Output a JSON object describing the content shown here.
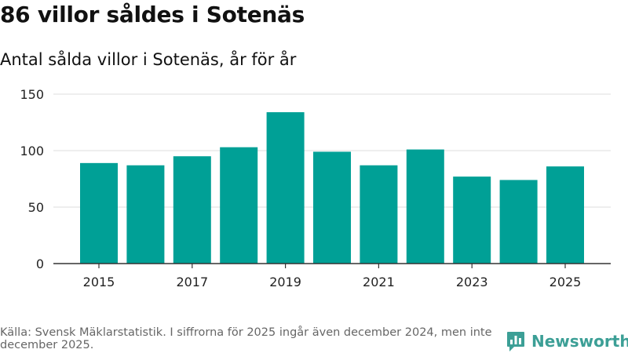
{
  "header": {
    "title": "86 villor såldes i Sotenäs",
    "subtitle": "Antal sålda villor i Sotenäs, år för år"
  },
  "chart_data": {
    "type": "bar",
    "title": "86 villor såldes i Sotenäs",
    "subtitle": "Antal sålda villor i Sotenäs, år för år",
    "categories": [
      "2015",
      "2016",
      "2017",
      "2018",
      "2019",
      "2020",
      "2021",
      "2022",
      "2023",
      "2024",
      "2025"
    ],
    "values": [
      89,
      87,
      95,
      103,
      134,
      99,
      87,
      101,
      77,
      74,
      86
    ],
    "x_tick_labels": [
      "2015",
      "2017",
      "2019",
      "2021",
      "2023",
      "2025"
    ],
    "y_ticks": [
      0,
      50,
      100,
      150
    ],
    "ylim": [
      0,
      150
    ],
    "xlabel": "",
    "ylabel": "",
    "grid": true,
    "bar_color": "#00a096"
  },
  "footer": {
    "source": "Källa: Svensk Mäklarstatistik. I siffrorna för 2025 ingår även december 2024, men inte december 2025."
  },
  "brand": {
    "name": "Newsworthy",
    "color": "#3c9f96",
    "icon": "bar-chart-logo-icon"
  }
}
